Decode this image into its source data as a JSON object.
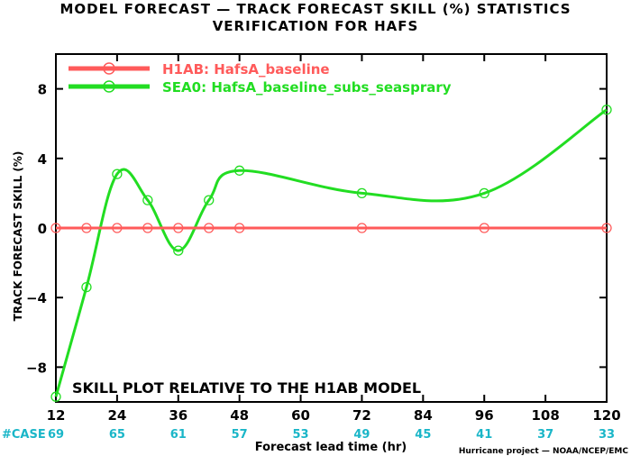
{
  "title_line1": "MODEL FORECAST — TRACK FORECAST SKILL (%) STATISTICS",
  "title_line2": "VERIFICATION FOR HAFS",
  "annotation": "SKILL PLOT RELATIVE TO THE H1AB MODEL",
  "case_label": "#CASE",
  "credit": "Hurricane project — NOAA/NCEP/EMC",
  "colors": {
    "h1ab": "#ff5a5a",
    "sea0": "#22dd22",
    "case": "#1ab6c8"
  },
  "chart_data": {
    "type": "line",
    "xlabel": "Forecast lead time (hr)",
    "ylabel": "TRACK FORECAST SKILL (%)",
    "xlim": [
      12,
      120
    ],
    "ylim": [
      -10,
      10
    ],
    "xticks": [
      12,
      24,
      36,
      48,
      60,
      72,
      84,
      96,
      108,
      120
    ],
    "yticks": [
      -8,
      -4,
      0,
      4,
      8
    ],
    "grid": false,
    "legend_position": "top-left",
    "series": [
      {
        "name": "H1AB: HafsA_baseline",
        "color": "#ff5a5a",
        "x": [
          12,
          18,
          24,
          30,
          36,
          42,
          48,
          72,
          96,
          120
        ],
        "y": [
          0,
          0,
          0,
          0,
          0,
          0,
          0,
          0,
          0,
          0
        ]
      },
      {
        "name": "SEA0: HafsA_baseline_subs_seasprary",
        "color": "#22dd22",
        "x": [
          12,
          18,
          24,
          30,
          36,
          42,
          48,
          72,
          96,
          120
        ],
        "y": [
          -9.7,
          -3.4,
          3.1,
          1.6,
          -1.3,
          1.6,
          3.3,
          2.0,
          2.0,
          6.8
        ]
      }
    ],
    "cases": [
      {
        "x": 12,
        "n": 69
      },
      {
        "x": 24,
        "n": 65
      },
      {
        "x": 36,
        "n": 61
      },
      {
        "x": 48,
        "n": 57
      },
      {
        "x": 60,
        "n": 53
      },
      {
        "x": 72,
        "n": 49
      },
      {
        "x": 84,
        "n": 45
      },
      {
        "x": 96,
        "n": 41
      },
      {
        "x": 108,
        "n": 37
      },
      {
        "x": 120,
        "n": 33
      }
    ]
  }
}
